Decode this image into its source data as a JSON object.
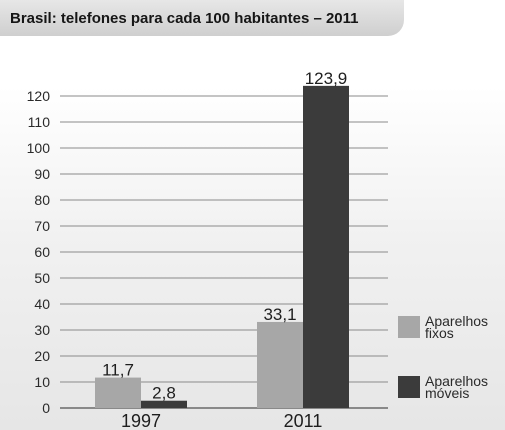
{
  "chart_data": {
    "type": "bar",
    "title": "Brasil: telefones para cada 100 habitantes – 2011",
    "categories": [
      "1997",
      "2011"
    ],
    "series": [
      {
        "name": "Aparelhos fixos",
        "values": [
          11.7,
          33.1
        ],
        "labels": [
          "11,7",
          "33,1"
        ],
        "color": "#a7a7a7"
      },
      {
        "name": "Aparelhos móveis",
        "values": [
          2.8,
          123.9
        ],
        "labels": [
          "2,8",
          "123,9"
        ],
        "color": "#3b3b3b"
      }
    ],
    "yticks": [
      "0",
      "10",
      "20",
      "30",
      "40",
      "50",
      "60",
      "70",
      "80",
      "90",
      "100",
      "110",
      "120"
    ],
    "ylim": [
      0,
      125
    ],
    "grid": true,
    "legend": "right",
    "legend_lines": [
      [
        "Aparelhos",
        "fixos"
      ],
      [
        "Aparelhos",
        "móveis"
      ]
    ]
  }
}
